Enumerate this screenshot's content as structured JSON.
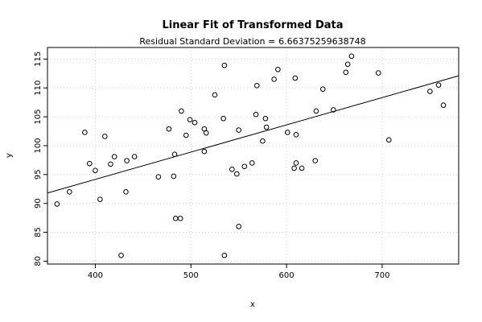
{
  "chart_data": {
    "type": "scatter",
    "title": "Linear Fit of Transformed Data",
    "subtitle_label": "Residual Standard Deviation =",
    "subtitle_value": "6.66375259638748",
    "xlabel": "x",
    "ylabel": "y",
    "xlim": [
      350,
      780
    ],
    "ylim": [
      79.5,
      117
    ],
    "x_ticks": [
      400,
      500,
      600,
      700
    ],
    "y_ticks": [
      80,
      85,
      90,
      95,
      100,
      105,
      110,
      115
    ],
    "grid": true,
    "fit_line": {
      "x": [
        350,
        780
      ],
      "y": [
        91.8,
        112.1
      ]
    },
    "points": [
      [
        360,
        89.9
      ],
      [
        373,
        92.0
      ],
      [
        389,
        102.3
      ],
      [
        394,
        96.9
      ],
      [
        400,
        95.7
      ],
      [
        405,
        90.7
      ],
      [
        410,
        101.6
      ],
      [
        416,
        96.8
      ],
      [
        420,
        98.1
      ],
      [
        427,
        81.0
      ],
      [
        432,
        92.0
      ],
      [
        433,
        97.4
      ],
      [
        441,
        98.1
      ],
      [
        466,
        94.6
      ],
      [
        477,
        102.9
      ],
      [
        482,
        94.7
      ],
      [
        483,
        98.5
      ],
      [
        484,
        87.4
      ],
      [
        489,
        87.4
      ],
      [
        490,
        106.0
      ],
      [
        495,
        101.8
      ],
      [
        499,
        104.5
      ],
      [
        504,
        104.0
      ],
      [
        514,
        99.0
      ],
      [
        514,
        102.9
      ],
      [
        516,
        102.2
      ],
      [
        525,
        108.8
      ],
      [
        534,
        104.7
      ],
      [
        535,
        113.9
      ],
      [
        535,
        81.0
      ],
      [
        543,
        95.9
      ],
      [
        548,
        95.1
      ],
      [
        550,
        102.7
      ],
      [
        550,
        86.0
      ],
      [
        556,
        96.4
      ],
      [
        564,
        97.0
      ],
      [
        568,
        105.4
      ],
      [
        569,
        110.4
      ],
      [
        575,
        100.8
      ],
      [
        578,
        104.7
      ],
      [
        579,
        103.2
      ],
      [
        587,
        111.5
      ],
      [
        591,
        113.2
      ],
      [
        601,
        102.3
      ],
      [
        608,
        96.1
      ],
      [
        609,
        111.7
      ],
      [
        610,
        97.0
      ],
      [
        610,
        101.9
      ],
      [
        616,
        96.1
      ],
      [
        630,
        97.4
      ],
      [
        631,
        106.0
      ],
      [
        638,
        109.8
      ],
      [
        649,
        106.2
      ],
      [
        662,
        112.7
      ],
      [
        664,
        114.1
      ],
      [
        668,
        115.5
      ],
      [
        696,
        112.6
      ],
      [
        707,
        101.0
      ],
      [
        750,
        109.4
      ],
      [
        759,
        110.5
      ],
      [
        764,
        107.0
      ]
    ]
  }
}
